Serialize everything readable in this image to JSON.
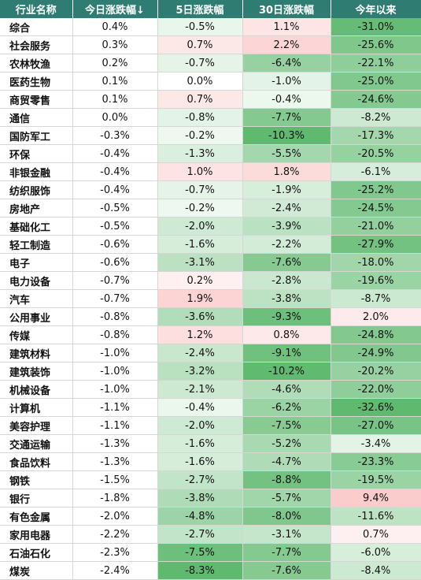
{
  "chart_data": {
    "type": "table",
    "columns": [
      "行业名称",
      "今日涨跌幅↓",
      "5日涨跌幅",
      "30日涨跌幅",
      "今年以来"
    ],
    "rows": [
      [
        "综合",
        "0.4%",
        "-0.5%",
        "1.1%",
        "-31.0%"
      ],
      [
        "社会服务",
        "0.3%",
        "0.7%",
        "2.2%",
        "-25.6%"
      ],
      [
        "农林牧渔",
        "0.2%",
        "-0.7%",
        "-6.4%",
        "-22.1%"
      ],
      [
        "医药生物",
        "0.1%",
        "0.0%",
        "-1.0%",
        "-25.0%"
      ],
      [
        "商贸零售",
        "0.1%",
        "0.7%",
        "-0.4%",
        "-24.6%"
      ],
      [
        "通信",
        "0.0%",
        "-0.8%",
        "-7.7%",
        "-8.2%"
      ],
      [
        "国防军工",
        "-0.3%",
        "-0.2%",
        "-10.3%",
        "-17.3%"
      ],
      [
        "环保",
        "-0.4%",
        "-1.3%",
        "-5.5%",
        "-20.5%"
      ],
      [
        "非银金融",
        "-0.4%",
        "1.0%",
        "1.8%",
        "-6.1%"
      ],
      [
        "纺织服饰",
        "-0.4%",
        "-0.7%",
        "-1.9%",
        "-25.2%"
      ],
      [
        "房地产",
        "-0.5%",
        "-0.2%",
        "-2.4%",
        "-24.5%"
      ],
      [
        "基础化工",
        "-0.5%",
        "-2.0%",
        "-3.9%",
        "-21.0%"
      ],
      [
        "轻工制造",
        "-0.6%",
        "-1.6%",
        "-2.2%",
        "-27.9%"
      ],
      [
        "电子",
        "-0.6%",
        "-3.1%",
        "-7.6%",
        "-18.0%"
      ],
      [
        "电力设备",
        "-0.7%",
        "0.2%",
        "-2.8%",
        "-19.6%"
      ],
      [
        "汽车",
        "-0.7%",
        "1.9%",
        "-3.8%",
        "-8.7%"
      ],
      [
        "公用事业",
        "-0.8%",
        "-3.6%",
        "-9.3%",
        "2.0%"
      ],
      [
        "传媒",
        "-0.8%",
        "1.2%",
        "0.8%",
        "-24.8%"
      ],
      [
        "建筑材料",
        "-1.0%",
        "-2.4%",
        "-9.1%",
        "-24.9%"
      ],
      [
        "建筑装饰",
        "-1.0%",
        "-3.2%",
        "-10.2%",
        "-20.2%"
      ],
      [
        "机械设备",
        "-1.0%",
        "-2.1%",
        "-4.6%",
        "-22.0%"
      ],
      [
        "计算机",
        "-1.1%",
        "-0.4%",
        "-6.2%",
        "-32.6%"
      ],
      [
        "美容护理",
        "-1.1%",
        "-2.0%",
        "-7.5%",
        "-27.0%"
      ],
      [
        "交通运输",
        "-1.3%",
        "-1.6%",
        "-5.2%",
        "-3.4%"
      ],
      [
        "食品饮料",
        "-1.3%",
        "-1.6%",
        "-4.7%",
        "-23.3%"
      ],
      [
        "钢铁",
        "-1.5%",
        "-2.7%",
        "-8.8%",
        "-19.5%"
      ],
      [
        "银行",
        "-1.8%",
        "-3.8%",
        "-5.7%",
        "9.4%"
      ],
      [
        "有色金属",
        "-2.0%",
        "-4.8%",
        "-8.0%",
        "-11.6%"
      ],
      [
        "家用电器",
        "-2.2%",
        "-2.7%",
        "-3.1%",
        "0.7%"
      ],
      [
        "石油石化",
        "-2.3%",
        "-7.5%",
        "-7.7%",
        "-6.0%"
      ],
      [
        "煤炭",
        "-2.4%",
        "-8.3%",
        "-7.6%",
        "-8.4%"
      ]
    ]
  },
  "colors": {
    "header_bg": "#2f7d72",
    "header_text": "#ffffff",
    "positive": "#f46b6b",
    "negative": "#5fb96f"
  }
}
